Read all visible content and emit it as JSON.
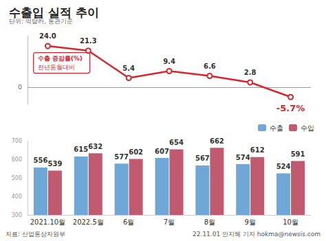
{
  "chart_data": [
    {
      "type": "line",
      "title": "수출입 실적 추이",
      "subtitle": "단위: 억달러, 통관기준",
      "annotations": [
        "수출 증감률(%)",
        "전년동월대비"
      ],
      "categories": [
        "2021.10월",
        "2022.5월",
        "6월",
        "7월",
        "8월",
        "9월",
        "10월"
      ],
      "values": [
        24.0,
        21.3,
        5.4,
        9.4,
        6.6,
        2.8,
        -5.7
      ],
      "value_labels": [
        "24.0",
        "21.3",
        "5.4",
        "9.4",
        "6.6",
        "2.8",
        "-5.7%"
      ],
      "color": "#d9262e",
      "ylim": [
        -10,
        30
      ],
      "yticks": [
        0
      ],
      "grid": true,
      "data_labels": true,
      "tick_labels": "y"
    },
    {
      "type": "bar",
      "annotations": [
        "자료: 산업통상자원부",
        "22.11.01 안지혜 기자 hokma@newsis.com"
      ],
      "categories": [
        "2021.10월",
        "2022.5월",
        "6월",
        "7월",
        "8월",
        "9월",
        "10월"
      ],
      "series": [
        {
          "name": "수출",
          "color": "#6fa8d6",
          "values": [
            556,
            615,
            577,
            607,
            567,
            574,
            524
          ]
        },
        {
          "name": "수입",
          "color": "#c05a6e",
          "values": [
            539,
            632,
            602,
            654,
            662,
            612,
            591
          ]
        }
      ],
      "ylim": [
        300,
        700
      ],
      "yticks": [
        300,
        400,
        500,
        600,
        700
      ],
      "legend": "upper right",
      "data_labels": true,
      "grid": false
    }
  ]
}
